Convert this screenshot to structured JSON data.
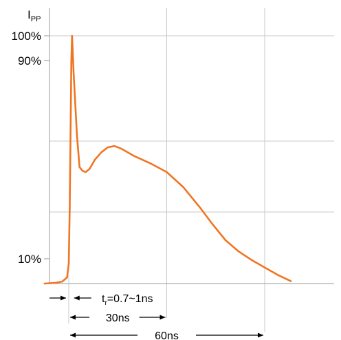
{
  "chart_data": {
    "type": "line",
    "title": "",
    "ylabel": {
      "main": "I",
      "sub": "PP"
    },
    "xlabel": "",
    "x_unit": "ns",
    "ylim": [
      0,
      100
    ],
    "y_ticks": [
      {
        "value": 100,
        "label": "100%"
      },
      {
        "value": 90,
        "label": "90%"
      },
      {
        "value": 10,
        "label": "10%"
      }
    ],
    "series": [
      {
        "color": "#f07522",
        "points": [
          [
            -7.4,
            0
          ],
          [
            -4,
            0.3
          ],
          [
            -2,
            0.8
          ],
          [
            -0.5,
            2.5
          ],
          [
            0,
            8
          ],
          [
            0.3,
            30
          ],
          [
            0.8,
            90
          ],
          [
            1.0,
            100
          ],
          [
            1.5,
            85
          ],
          [
            2.5,
            60
          ],
          [
            3.3,
            47
          ],
          [
            4.2,
            45.5
          ],
          [
            5.2,
            45
          ],
          [
            6.4,
            46.3
          ],
          [
            8,
            50
          ],
          [
            10,
            53
          ],
          [
            12,
            55
          ],
          [
            14,
            55.5
          ],
          [
            16,
            54.5
          ],
          [
            20,
            51.5
          ],
          [
            25,
            48.5
          ],
          [
            30,
            45
          ],
          [
            35,
            39
          ],
          [
            40,
            31
          ],
          [
            44,
            24
          ],
          [
            48,
            17.5
          ],
          [
            52,
            13
          ],
          [
            56,
            9.5
          ],
          [
            60,
            6.5
          ],
          [
            64,
            3.5
          ],
          [
            68,
            1
          ]
        ]
      }
    ],
    "annotations": {
      "rise_time": {
        "main": "t",
        "sub": "r",
        "rest": "=0.7~1ns"
      },
      "t30": {
        "label": "30ns",
        "value": 30
      },
      "t60": {
        "label": "60ns",
        "value": 60
      }
    },
    "vertical_grid_ns": [
      0,
      30,
      60
    ],
    "grid": true
  },
  "colors": {
    "curve": "#f07522",
    "grid": "#c8c8c8",
    "axis": "#999999",
    "text": "#000000"
  }
}
